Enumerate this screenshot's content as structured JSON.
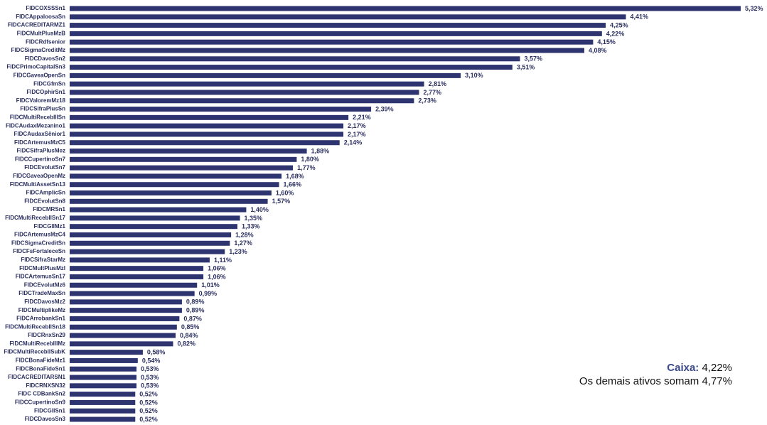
{
  "chart_data": {
    "type": "bar",
    "orientation": "horizontal",
    "color": "#2e3470",
    "categories": [
      "FIDCOXSSSn1",
      "FIDCAppaloosaSn",
      "FIDCACREDITARMZ1",
      "FIDCMultPlusMzB",
      "FIDCRdfsenior",
      "FIDCSigmaCreditMz",
      "FIDCDavosSn2",
      "FIDCPrimoCapitalSn3",
      "FIDCGaveaOpenSn",
      "FIDCGfmSn",
      "FIDCOphirSn1",
      "FIDCValoremMz18",
      "FIDCSifraPlusSn",
      "FIDCMultiRecebIIISn",
      "FIDCAudaxMezanino1",
      "FIDCAudaxSênior1",
      "FIDCArtemusMzC5",
      "FIDCSifraPlusMez",
      "FIDCCupertinoSn7",
      "FIDCEvolutSn7",
      "FIDCGaveaOpenMz",
      "FIDCMultiAssetSn13",
      "FIDCAmplicSn",
      "FIDCEvolutSn8",
      "FIDCMRSn1",
      "FIDCMultiRecebIISn17",
      "FIDCGIIMz1",
      "FIDCArtemusMzC4",
      "FIDCSigmaCreditSn",
      "FIDCFsFortaleceSn",
      "FIDCSifraStarMz",
      "FIDCMultPlusMzI",
      "FIDCArtemusSn17",
      "FIDCEvolutMz6",
      "FIDCTradeMaxSn",
      "FIDCDavosMz2",
      "FIDCMultiplikeMz",
      "FIDCArrobankSn1",
      "FIDCMultiRecebIISn18",
      "FIDCRnxSn29",
      "FIDCMultiRecebIIIMz",
      "FIDCMultiRecebIISubK",
      "FIDCBonaFideMz1",
      "FIDCBonaFideSn1",
      "FIDCACREDITARSN1",
      "FIDCRNXSN32",
      "FIDC CDBankSn2",
      "FIDCCupertinoSn9",
      "FIDCGIISn1",
      "FIDCDavosSn3"
    ],
    "values": [
      5.32,
      4.41,
      4.25,
      4.22,
      4.15,
      4.08,
      3.57,
      3.51,
      3.1,
      2.81,
      2.77,
      2.73,
      2.39,
      2.21,
      2.17,
      2.17,
      2.14,
      1.88,
      1.8,
      1.77,
      1.68,
      1.66,
      1.6,
      1.57,
      1.4,
      1.35,
      1.33,
      1.28,
      1.27,
      1.23,
      1.11,
      1.06,
      1.06,
      1.01,
      0.99,
      0.89,
      0.89,
      0.87,
      0.85,
      0.84,
      0.82,
      0.58,
      0.54,
      0.53,
      0.53,
      0.53,
      0.52,
      0.52,
      0.52,
      0.52
    ],
    "value_labels": [
      "5,32%",
      "4,41%",
      "4,25%",
      "4,22%",
      "4,15%",
      "4,08%",
      "3,57%",
      "3,51%",
      "3,10%",
      "2,81%",
      "2,77%",
      "2,73%",
      "2,39%",
      "2,21%",
      "2,17%",
      "2,17%",
      "2,14%",
      "1,88%",
      "1,80%",
      "1,77%",
      "1,68%",
      "1,66%",
      "1,60%",
      "1,57%",
      "1,40%",
      "1,35%",
      "1,33%",
      "1,28%",
      "1,27%",
      "1,23%",
      "1,11%",
      "1,06%",
      "1,06%",
      "1,01%",
      "0,99%",
      "0,89%",
      "0,89%",
      "0,87%",
      "0,85%",
      "0,84%",
      "0,82%",
      "0,58%",
      "0,54%",
      "0,53%",
      "0,53%",
      "0,53%",
      "0,52%",
      "0,52%",
      "0,52%",
      "0,52%"
    ],
    "annotations": {
      "caixa_label": "Caixa:",
      "caixa_value": " 4,22%",
      "others": "Os demais ativos somam 4,77%"
    }
  }
}
